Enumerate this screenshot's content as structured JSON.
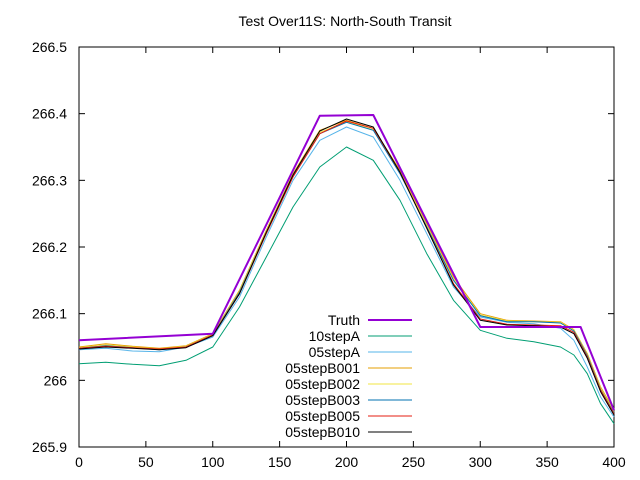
{
  "chart_data": {
    "type": "line",
    "title": "Test Over11S: North-South Transit",
    "xlabel": "",
    "ylabel": "",
    "xlim": [
      0,
      400
    ],
    "ylim": [
      265.9,
      266.5
    ],
    "xticks": [
      "0",
      "50",
      "100",
      "150",
      "200",
      "250",
      "300",
      "350",
      "400"
    ],
    "yticks": [
      "265.9",
      "266",
      "266.1",
      "266.2",
      "266.3",
      "266.4",
      "266.5"
    ],
    "grid": false,
    "legend_position": "bottom-center",
    "series": [
      {
        "name": "Truth",
        "color": "#9400d3",
        "width": 2,
        "x": [
          0,
          100,
          180,
          220,
          300,
          375,
          400
        ],
        "y": [
          266.06,
          266.07,
          266.397,
          266.398,
          266.08,
          266.08,
          265.955
        ]
      },
      {
        "name": "10stepA",
        "color": "#009e73",
        "width": 1,
        "x": [
          0,
          20,
          40,
          60,
          80,
          100,
          120,
          140,
          160,
          180,
          200,
          220,
          240,
          260,
          280,
          300,
          320,
          340,
          360,
          370,
          380,
          390,
          400
        ],
        "y": [
          266.025,
          266.027,
          266.024,
          266.022,
          266.03,
          266.05,
          266.11,
          266.185,
          266.26,
          266.32,
          266.35,
          266.33,
          266.27,
          266.19,
          266.12,
          266.075,
          266.063,
          266.058,
          266.05,
          266.038,
          266.01,
          265.965,
          265.935
        ]
      },
      {
        "name": "05stepA",
        "color": "#56b4e9",
        "width": 1,
        "x": [
          0,
          20,
          40,
          60,
          80,
          100,
          120,
          140,
          160,
          180,
          200,
          220,
          240,
          260,
          280,
          300,
          320,
          340,
          360,
          370,
          380,
          390,
          400
        ],
        "y": [
          266.046,
          266.048,
          266.044,
          266.043,
          266.05,
          266.065,
          266.125,
          266.215,
          266.3,
          266.36,
          266.38,
          266.365,
          266.3,
          266.22,
          266.14,
          266.095,
          266.087,
          266.085,
          266.078,
          266.06,
          266.02,
          265.975,
          265.945
        ]
      },
      {
        "name": "05stepB001",
        "color": "#e69f00",
        "width": 1,
        "x": [
          0,
          20,
          40,
          60,
          80,
          100,
          120,
          140,
          160,
          180,
          200,
          220,
          240,
          260,
          280,
          300,
          320,
          340,
          360,
          370,
          380,
          390,
          400
        ],
        "y": [
          266.05,
          266.055,
          266.051,
          266.048,
          266.052,
          266.07,
          266.135,
          266.225,
          266.31,
          266.375,
          266.39,
          266.378,
          266.315,
          266.235,
          266.155,
          266.1,
          266.09,
          266.089,
          266.088,
          266.076,
          266.04,
          265.99,
          265.955
        ]
      },
      {
        "name": "05stepB002",
        "color": "#f0e442",
        "width": 1,
        "x": [
          0,
          20,
          40,
          60,
          80,
          100,
          120,
          140,
          160,
          180,
          200,
          220,
          240,
          260,
          280,
          300,
          320,
          340,
          360,
          370,
          380,
          390,
          400
        ],
        "y": [
          266.049,
          266.053,
          266.05,
          266.047,
          266.051,
          266.069,
          266.133,
          266.223,
          266.308,
          266.372,
          266.388,
          266.376,
          266.312,
          266.232,
          266.152,
          266.098,
          266.089,
          266.088,
          266.087,
          266.075,
          266.038,
          265.988,
          265.953
        ]
      },
      {
        "name": "05stepB003",
        "color": "#0072b2",
        "width": 1,
        "x": [
          0,
          20,
          40,
          60,
          80,
          100,
          120,
          140,
          160,
          180,
          200,
          220,
          240,
          260,
          280,
          300,
          320,
          340,
          360,
          370,
          380,
          390,
          400
        ],
        "y": [
          266.048,
          266.052,
          266.049,
          266.046,
          266.05,
          266.068,
          266.132,
          266.221,
          266.306,
          266.37,
          266.387,
          266.375,
          266.31,
          266.23,
          266.15,
          266.097,
          266.088,
          266.088,
          266.086,
          266.074,
          266.037,
          265.986,
          265.951
        ]
      },
      {
        "name": "05stepB005",
        "color": "#e51e10",
        "width": 1,
        "x": [
          0,
          20,
          40,
          60,
          80,
          100,
          120,
          140,
          160,
          180,
          200,
          220,
          240,
          260,
          280,
          300,
          320,
          340,
          360,
          370,
          380,
          390,
          400
        ],
        "y": [
          266.048,
          266.051,
          266.049,
          266.047,
          266.05,
          266.068,
          266.13,
          266.22,
          266.305,
          266.37,
          266.389,
          266.378,
          266.312,
          266.228,
          266.145,
          266.092,
          266.084,
          266.083,
          266.082,
          266.072,
          266.035,
          265.985,
          265.95
        ]
      },
      {
        "name": "05stepB010",
        "color": "#000000",
        "width": 1,
        "x": [
          0,
          20,
          40,
          60,
          80,
          100,
          120,
          140,
          160,
          180,
          200,
          220,
          240,
          260,
          280,
          300,
          320,
          340,
          360,
          370,
          380,
          390,
          400
        ],
        "y": [
          266.047,
          266.05,
          266.048,
          266.046,
          266.049,
          266.067,
          266.13,
          266.222,
          266.308,
          266.374,
          266.392,
          266.38,
          266.312,
          266.228,
          266.143,
          266.09,
          266.083,
          266.082,
          266.08,
          266.07,
          266.033,
          265.983,
          265.948
        ]
      }
    ]
  }
}
